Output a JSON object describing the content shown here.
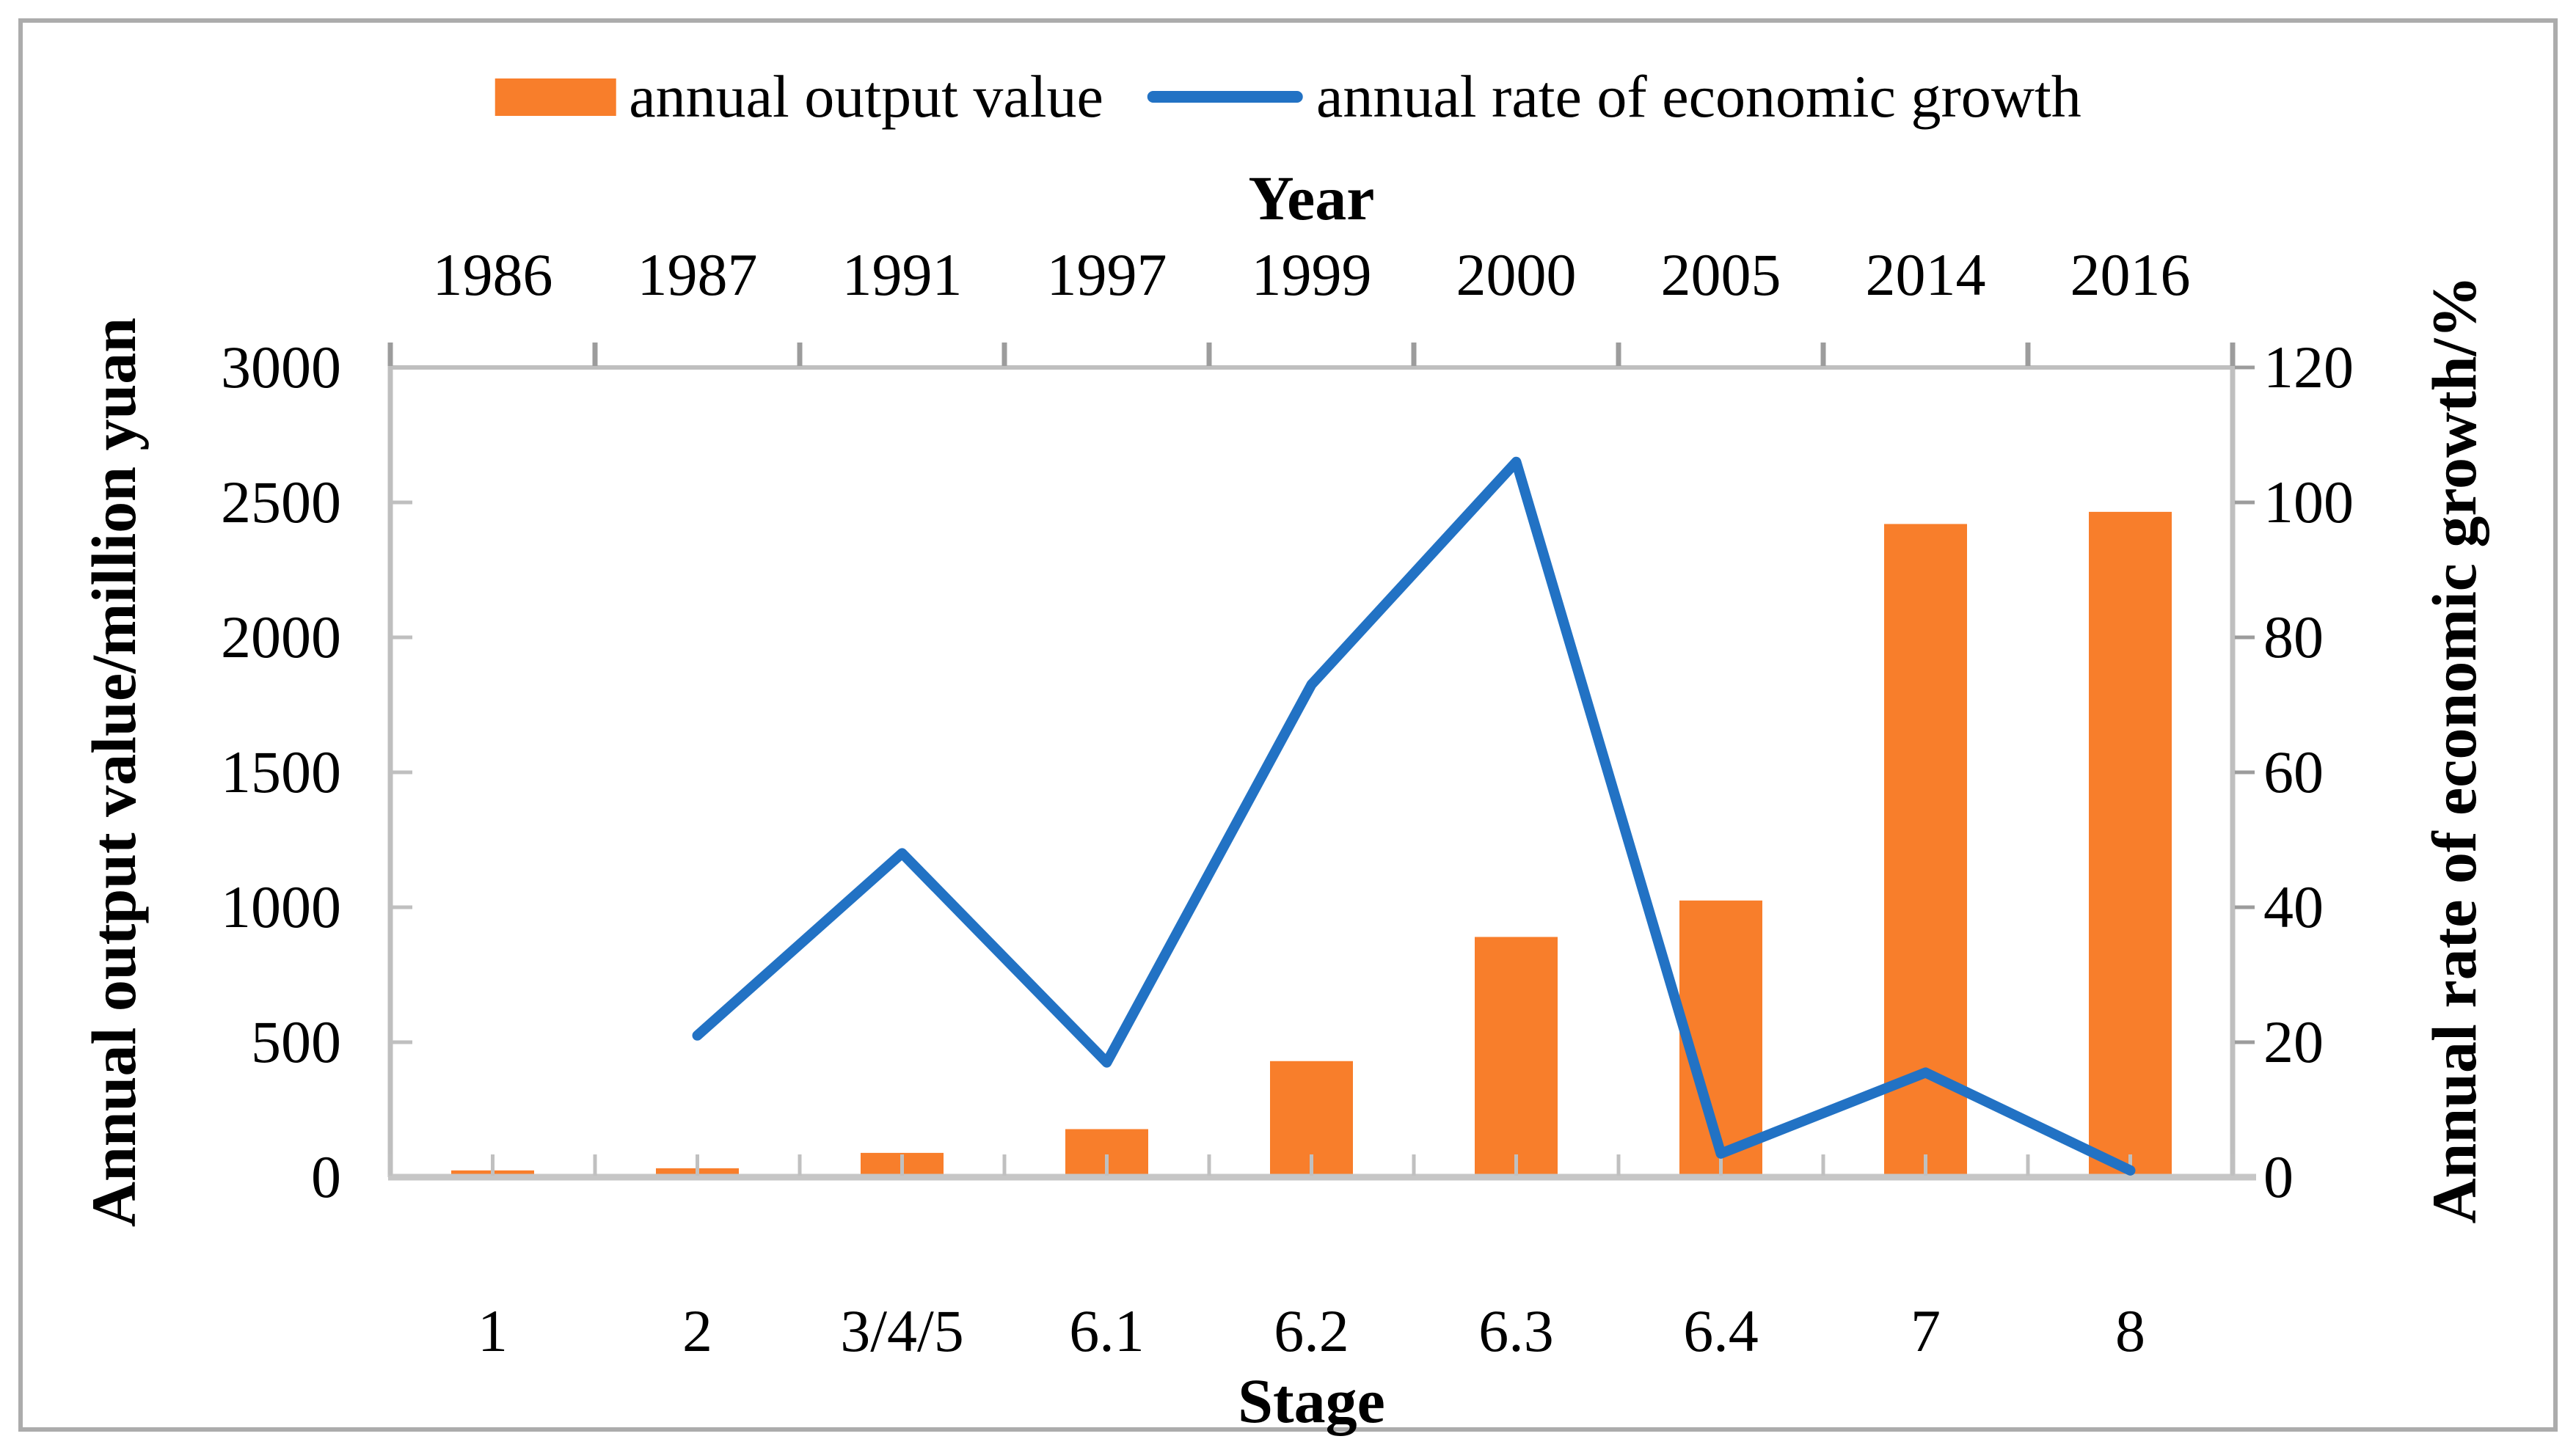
{
  "figure": {
    "kind": "combo chart (bars + line, dual y-axes)",
    "background": "#FFFFFF",
    "border_color": "#ACACAC"
  },
  "legend": {
    "position": "top-center",
    "items": [
      {
        "label": "annual output value",
        "marker": "bar-swatch",
        "color": "#F87E2B"
      },
      {
        "label": "annual rate of economic growth",
        "marker": "line-swatch",
        "color": "#2272C4"
      }
    ]
  },
  "chart_data": {
    "type": "bar",
    "subtype": "bar+line combo",
    "categories": [
      "1",
      "2",
      "3/4/5",
      "6.1",
      "6.2",
      "6.3",
      "6.4",
      "7",
      "8"
    ],
    "top_axis": {
      "title": "Year",
      "labels": [
        "1986",
        "1987",
        "1991",
        "1997",
        "1999",
        "2000",
        "2005",
        "2014",
        "2016"
      ]
    },
    "bottom_axis": {
      "title": "Stage"
    },
    "left_axis": {
      "title": "Annual output value/million yuan",
      "min": 0,
      "max": 3000,
      "step": 500,
      "tick_labels": [
        "0",
        "500",
        "1000",
        "1500",
        "2000",
        "2500",
        "3000"
      ]
    },
    "right_axis": {
      "title": "Annual rate of economic growth/%",
      "min": 0,
      "max": 120,
      "step": 20,
      "tick_labels": [
        "0",
        "20",
        "40",
        "60",
        "80",
        "100",
        "120"
      ]
    },
    "series": [
      {
        "name": "annual output value",
        "type": "bar",
        "axis": "left",
        "color": "#F87E2B",
        "values": [
          25,
          33,
          90,
          178,
          430,
          890,
          1025,
          2420,
          2465
        ]
      },
      {
        "name": "annual rate of economic growth",
        "type": "line",
        "axis": "right",
        "color": "#2272C4",
        "values": [
          null,
          21,
          48,
          17,
          73,
          106,
          3.5,
          15.5,
          1
        ]
      }
    ],
    "grid": false,
    "legend_position": "top-center",
    "frame_color": "#BFBFBF",
    "tick_color_outer": "#9C9C9C",
    "tick_color_inner": "#C0C0C0",
    "bottom_line_color": "#C6C6C6"
  }
}
